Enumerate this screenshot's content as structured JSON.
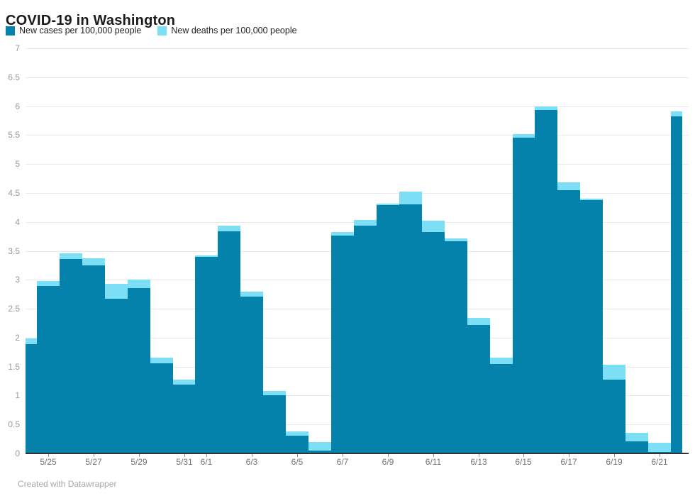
{
  "title": "COVID-19 in Washington",
  "legend": [
    {
      "label": "New cases per 100,000 people",
      "color": "#0582ac"
    },
    {
      "label": "New deaths per 100,000 people",
      "color": "#7ddff6"
    }
  ],
  "footer": "Created with Datawrapper",
  "colors": {
    "cases": "#0582ac",
    "deaths": "#7ddff6",
    "gridline": "#e9e9e9",
    "zero_axis": "#333333",
    "y_tick_text": "#9a9a9a",
    "x_tick_text": "#757575",
    "title_text": "#1a1a1a",
    "footer_text": "#a8a8a8"
  },
  "chart_data": {
    "type": "bar",
    "stacked": true,
    "title": "COVID-19 in Washington",
    "categories": [
      "5/24",
      "5/25",
      "5/26",
      "5/27",
      "5/28",
      "5/29",
      "5/30",
      "5/31",
      "6/1",
      "6/2",
      "6/3",
      "6/4",
      "6/5",
      "6/6",
      "6/7",
      "6/8",
      "6/9",
      "6/10",
      "6/11",
      "6/12",
      "6/13",
      "6/14",
      "6/15",
      "6/16",
      "6/17",
      "6/18",
      "6/19",
      "6/20",
      "6/21",
      "6/22"
    ],
    "series": [
      {
        "name": "New cases per 100,000 people",
        "color": "#0582ac",
        "values": [
          1.89,
          2.89,
          3.36,
          3.25,
          2.67,
          2.86,
          1.56,
          1.19,
          3.4,
          3.84,
          2.71,
          1.01,
          0.31,
          0.05,
          3.76,
          3.94,
          4.29,
          4.3,
          3.83,
          3.67,
          2.22,
          1.54,
          5.46,
          5.93,
          4.55,
          4.38,
          1.28,
          0.21,
          0.02,
          5.82
        ]
      },
      {
        "name": "New deaths per 100,000 people",
        "color": "#7ddff6",
        "values": [
          0.09,
          0.09,
          0.1,
          0.12,
          0.26,
          0.14,
          0.09,
          0.09,
          0.02,
          0.09,
          0.09,
          0.07,
          0.07,
          0.15,
          0.06,
          0.09,
          0.03,
          0.22,
          0.19,
          0.05,
          0.12,
          0.11,
          0.06,
          0.06,
          0.13,
          0.02,
          0.25,
          0.15,
          0.16,
          0.09
        ]
      }
    ],
    "xlabel": "",
    "ylabel": "",
    "ylim": [
      0,
      7
    ],
    "y_tick_step": 0.5,
    "x_tick_labels": [
      "5/25",
      "5/27",
      "5/29",
      "5/31",
      "6/1",
      "6/3",
      "6/5",
      "6/7",
      "6/9",
      "6/11",
      "6/13",
      "6/15",
      "6/17",
      "6/19",
      "6/21"
    ],
    "x_tick_indices": [
      1,
      3,
      5,
      7,
      8,
      10,
      12,
      14,
      16,
      18,
      20,
      22,
      24,
      26,
      28
    ],
    "grid": true,
    "legend_position": "top-left",
    "bars_flush": true,
    "first_last_half_width": true
  }
}
